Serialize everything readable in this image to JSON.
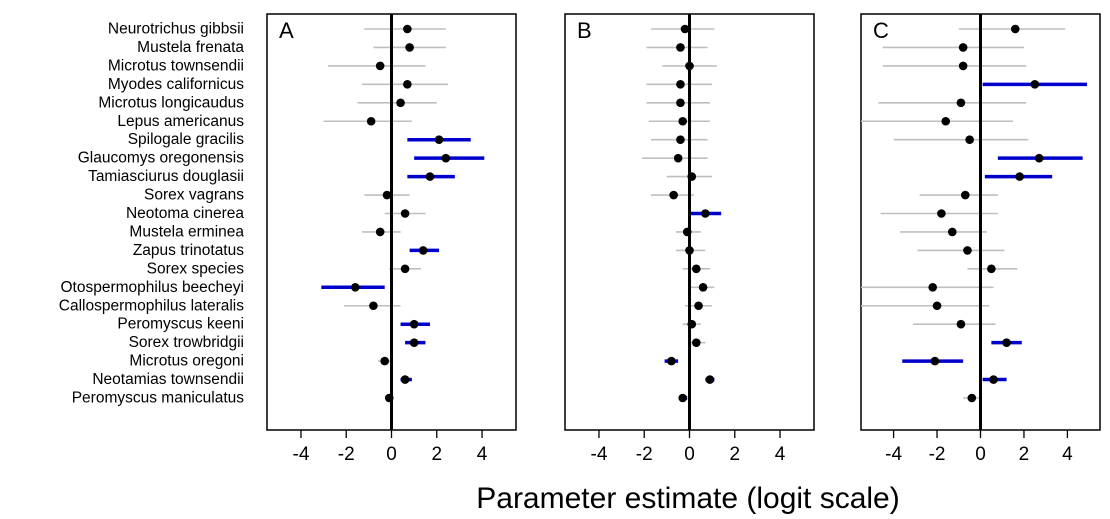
{
  "chart_data": {
    "type": "forest",
    "xlabel": "Parameter estimate (logit scale)",
    "xlim": [
      -5.5,
      5.5
    ],
    "xticks": [
      -4,
      -2,
      0,
      2,
      4
    ],
    "reference_line_x": 0,
    "colors": {
      "significant": "#0000cc",
      "nonsignificant": "#bfbfbf",
      "point": "#000000",
      "reference": "#000000"
    },
    "species": [
      "Neurotrichus gibbsii",
      "Mustela frenata",
      "Microtus townsendii",
      "Myodes californicus",
      "Microtus longicaudus",
      "Lepus americanus",
      "Spilogale gracilis",
      "Glaucomys oregonensis",
      "Tamiasciurus douglasii",
      "Sorex vagrans",
      "Neotoma cinerea",
      "Mustela erminea",
      "Zapus trinotatus",
      "Sorex species",
      "Otospermophilus beecheyi",
      "Callospermophilus lateralis",
      "Peromyscus keeni",
      "Sorex trowbridgii",
      "Microtus oregoni",
      "Neotamias townsendii",
      "Peromyscus maniculatus"
    ],
    "panels": [
      {
        "label": "A",
        "estimates": [
          {
            "est": 0.7,
            "lo": -1.2,
            "hi": 2.4,
            "sig": false
          },
          {
            "est": 0.8,
            "lo": -0.8,
            "hi": 2.4,
            "sig": false
          },
          {
            "est": -0.5,
            "lo": -2.8,
            "hi": 1.5,
            "sig": false
          },
          {
            "est": 0.7,
            "lo": -1.3,
            "hi": 2.5,
            "sig": false
          },
          {
            "est": 0.4,
            "lo": -1.5,
            "hi": 2.0,
            "sig": false
          },
          {
            "est": -0.9,
            "lo": -3.0,
            "hi": 0.9,
            "sig": false
          },
          {
            "est": 2.1,
            "lo": 0.7,
            "hi": 3.5,
            "sig": true
          },
          {
            "est": 2.4,
            "lo": 1.0,
            "hi": 4.1,
            "sig": true
          },
          {
            "est": 1.7,
            "lo": 0.7,
            "hi": 2.8,
            "sig": true
          },
          {
            "est": -0.2,
            "lo": -1.2,
            "hi": 0.8,
            "sig": false
          },
          {
            "est": 0.6,
            "lo": -0.3,
            "hi": 1.5,
            "sig": false
          },
          {
            "est": -0.5,
            "lo": -1.3,
            "hi": 0.4,
            "sig": false
          },
          {
            "est": 1.4,
            "lo": 0.8,
            "hi": 2.1,
            "sig": true
          },
          {
            "est": 0.6,
            "lo": -0.1,
            "hi": 1.3,
            "sig": false
          },
          {
            "est": -1.6,
            "lo": -3.1,
            "hi": -0.3,
            "sig": true
          },
          {
            "est": -0.8,
            "lo": -2.1,
            "hi": 0.4,
            "sig": false
          },
          {
            "est": 1.0,
            "lo": 0.4,
            "hi": 1.7,
            "sig": true
          },
          {
            "est": 1.0,
            "lo": 0.6,
            "hi": 1.5,
            "sig": true
          },
          {
            "est": -0.3,
            "lo": -0.6,
            "hi": 0.0,
            "sig": false
          },
          {
            "est": 0.6,
            "lo": 0.4,
            "hi": 0.9,
            "sig": true
          },
          {
            "est": -0.1,
            "lo": -0.2,
            "hi": 0.1,
            "sig": false
          }
        ]
      },
      {
        "label": "B",
        "estimates": [
          {
            "est": -0.2,
            "lo": -1.7,
            "hi": 1.1,
            "sig": false
          },
          {
            "est": -0.4,
            "lo": -1.9,
            "hi": 0.8,
            "sig": false
          },
          {
            "est": 0.0,
            "lo": -1.2,
            "hi": 1.2,
            "sig": false
          },
          {
            "est": -0.4,
            "lo": -1.9,
            "hi": 1.0,
            "sig": false
          },
          {
            "est": -0.4,
            "lo": -1.9,
            "hi": 0.9,
            "sig": false
          },
          {
            "est": -0.3,
            "lo": -1.8,
            "hi": 0.9,
            "sig": false
          },
          {
            "est": -0.4,
            "lo": -1.7,
            "hi": 0.8,
            "sig": false
          },
          {
            "est": -0.5,
            "lo": -2.1,
            "hi": 0.8,
            "sig": false
          },
          {
            "est": 0.1,
            "lo": -1.0,
            "hi": 1.0,
            "sig": false
          },
          {
            "est": -0.7,
            "lo": -1.7,
            "hi": 0.2,
            "sig": false
          },
          {
            "est": 0.7,
            "lo": 0.0,
            "hi": 1.4,
            "sig": true
          },
          {
            "est": -0.1,
            "lo": -0.6,
            "hi": 0.5,
            "sig": false
          },
          {
            "est": 0.0,
            "lo": -0.6,
            "hi": 0.7,
            "sig": false
          },
          {
            "est": 0.3,
            "lo": -0.3,
            "hi": 0.9,
            "sig": false
          },
          {
            "est": 0.6,
            "lo": 0.0,
            "hi": 1.1,
            "sig": false
          },
          {
            "est": 0.4,
            "lo": -0.2,
            "hi": 1.0,
            "sig": false
          },
          {
            "est": 0.1,
            "lo": -0.3,
            "hi": 0.5,
            "sig": false
          },
          {
            "est": 0.3,
            "lo": 0.0,
            "hi": 0.7,
            "sig": false
          },
          {
            "est": -0.8,
            "lo": -1.1,
            "hi": -0.5,
            "sig": true
          },
          {
            "est": 0.9,
            "lo": 0.7,
            "hi": 1.1,
            "sig": true
          },
          {
            "est": -0.3,
            "lo": -0.4,
            "hi": -0.1,
            "sig": true
          }
        ]
      },
      {
        "label": "C",
        "estimates": [
          {
            "est": 1.6,
            "lo": -1.0,
            "hi": 3.9,
            "sig": false
          },
          {
            "est": -0.8,
            "lo": -4.5,
            "hi": 2.0,
            "sig": false
          },
          {
            "est": -0.8,
            "lo": -4.5,
            "hi": 2.1,
            "sig": false
          },
          {
            "est": 2.5,
            "lo": 0.1,
            "hi": 4.9,
            "sig": true
          },
          {
            "est": -0.9,
            "lo": -4.7,
            "hi": 2.1,
            "sig": false
          },
          {
            "est": -1.6,
            "lo": -5.5,
            "hi": 1.5,
            "sig": false
          },
          {
            "est": -0.5,
            "lo": -4.0,
            "hi": 2.2,
            "sig": false
          },
          {
            "est": 2.7,
            "lo": 0.8,
            "hi": 4.7,
            "sig": true
          },
          {
            "est": 1.8,
            "lo": 0.2,
            "hi": 3.3,
            "sig": true
          },
          {
            "est": -0.7,
            "lo": -2.8,
            "hi": 0.8,
            "sig": false
          },
          {
            "est": -1.8,
            "lo": -4.6,
            "hi": 0.8,
            "sig": false
          },
          {
            "est": -1.3,
            "lo": -3.7,
            "hi": 0.3,
            "sig": false
          },
          {
            "est": -0.6,
            "lo": -2.9,
            "hi": 1.1,
            "sig": false
          },
          {
            "est": 0.5,
            "lo": -0.6,
            "hi": 1.7,
            "sig": false
          },
          {
            "est": -2.2,
            "lo": -5.5,
            "hi": 0.6,
            "sig": false
          },
          {
            "est": -2.0,
            "lo": -5.5,
            "hi": 0.4,
            "sig": false
          },
          {
            "est": -0.9,
            "lo": -3.1,
            "hi": 0.7,
            "sig": false
          },
          {
            "est": 1.2,
            "lo": 0.5,
            "hi": 1.9,
            "sig": true
          },
          {
            "est": -2.1,
            "lo": -3.6,
            "hi": -0.8,
            "sig": true
          },
          {
            "est": 0.6,
            "lo": 0.1,
            "hi": 1.2,
            "sig": true
          },
          {
            "est": -0.4,
            "lo": -0.8,
            "hi": 0.0,
            "sig": false
          }
        ]
      }
    ]
  }
}
